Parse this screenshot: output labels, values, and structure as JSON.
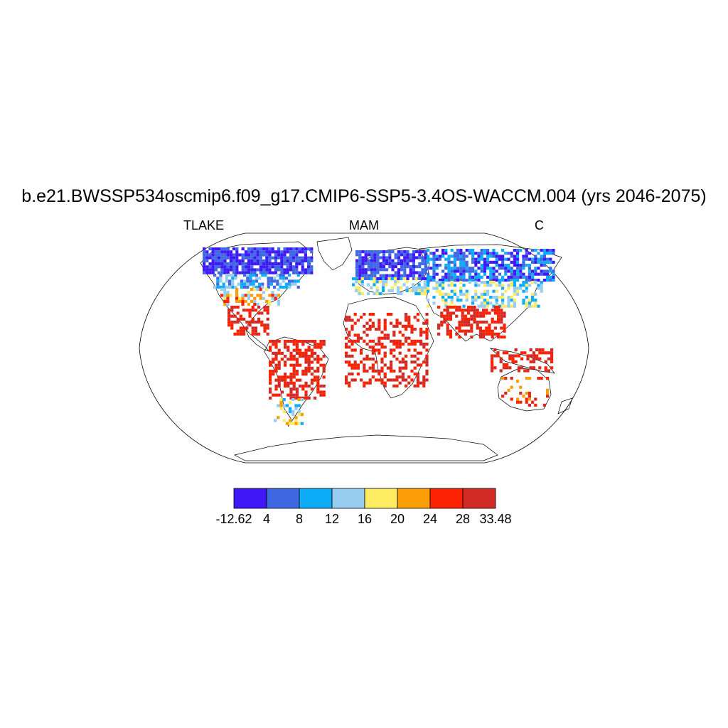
{
  "title": "b.e21.BWSSP534oscmip6.f09_g17.CMIP6-SSP5-3.4OS-WACCM.004 (yrs 2046-2075)",
  "subtitle_left": "TLAKE",
  "subtitle_center": "MAM",
  "subtitle_right": "C",
  "map": {
    "projection": "Robinson",
    "field": "lake temperature anomaly pattern (MAM)"
  },
  "colorbar": {
    "labels": [
      "-12.62",
      "4",
      "8",
      "12",
      "16",
      "20",
      "24",
      "28",
      "33.48"
    ],
    "colors": [
      "#4017f7",
      "#4068e2",
      "#0eabf6",
      "#97cdee",
      "#fdeb62",
      "#fb9d06",
      "#fb2203",
      "#d22b26"
    ]
  }
}
